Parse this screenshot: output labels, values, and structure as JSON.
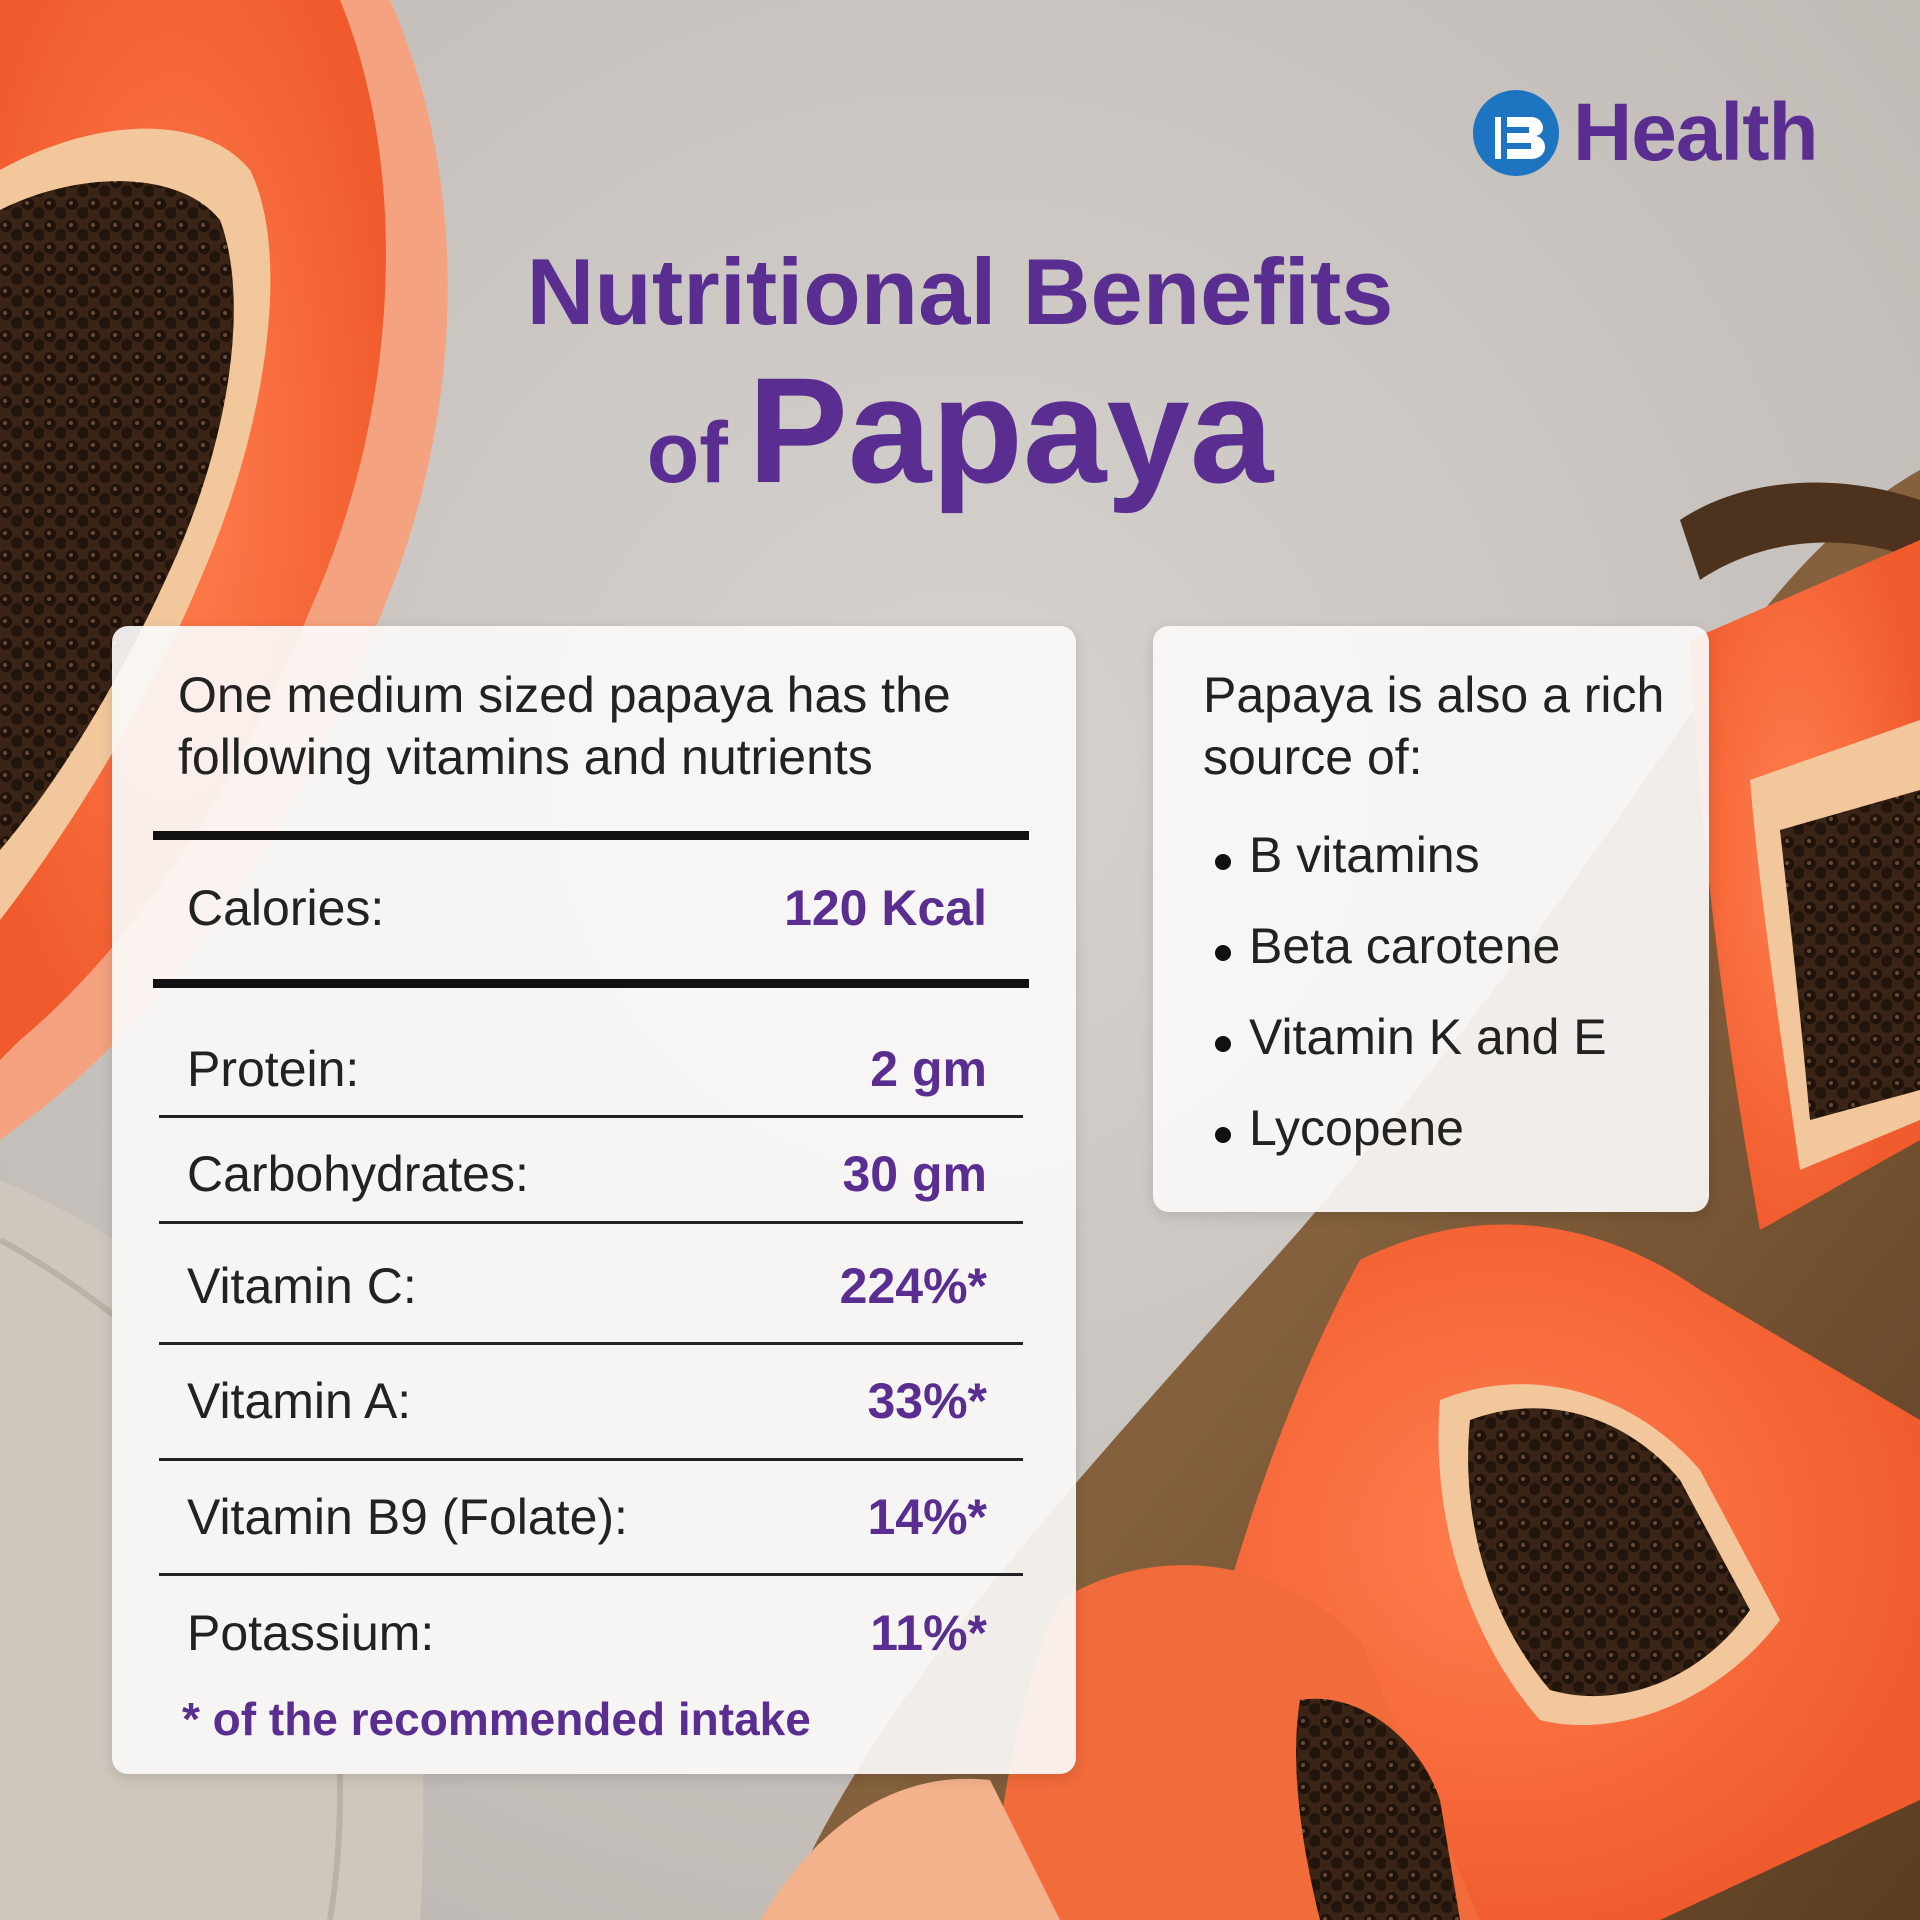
{
  "brand": {
    "name": "Health",
    "color": "#5a2d91",
    "mark_color": "#1d74c0"
  },
  "title": {
    "line1": "Nutritional Benefits",
    "of": "of",
    "fruit": "Papaya"
  },
  "nutrients_card": {
    "intro": "One medium sized papaya has the following vitamins and nutrients",
    "calories": {
      "label": "Calories:",
      "value": "120 Kcal"
    },
    "rows": [
      {
        "label": "Protein:",
        "value": "2 gm"
      },
      {
        "label": "Carbohydrates:",
        "value": "30 gm"
      },
      {
        "label": "Vitamin C:",
        "value": "224%*"
      },
      {
        "label": "Vitamin A:",
        "value": "33%*"
      },
      {
        "label": "Vitamin B9 (Folate):",
        "value": "14%*"
      },
      {
        "label": "Potassium:",
        "value": "11%*"
      }
    ],
    "footnote": "* of the recommended intake"
  },
  "sources_card": {
    "intro": "Papaya is also a rich source of:",
    "items": [
      "B vitamins",
      "Beta carotene",
      "Vitamin K and E",
      "Lycopene"
    ]
  }
}
